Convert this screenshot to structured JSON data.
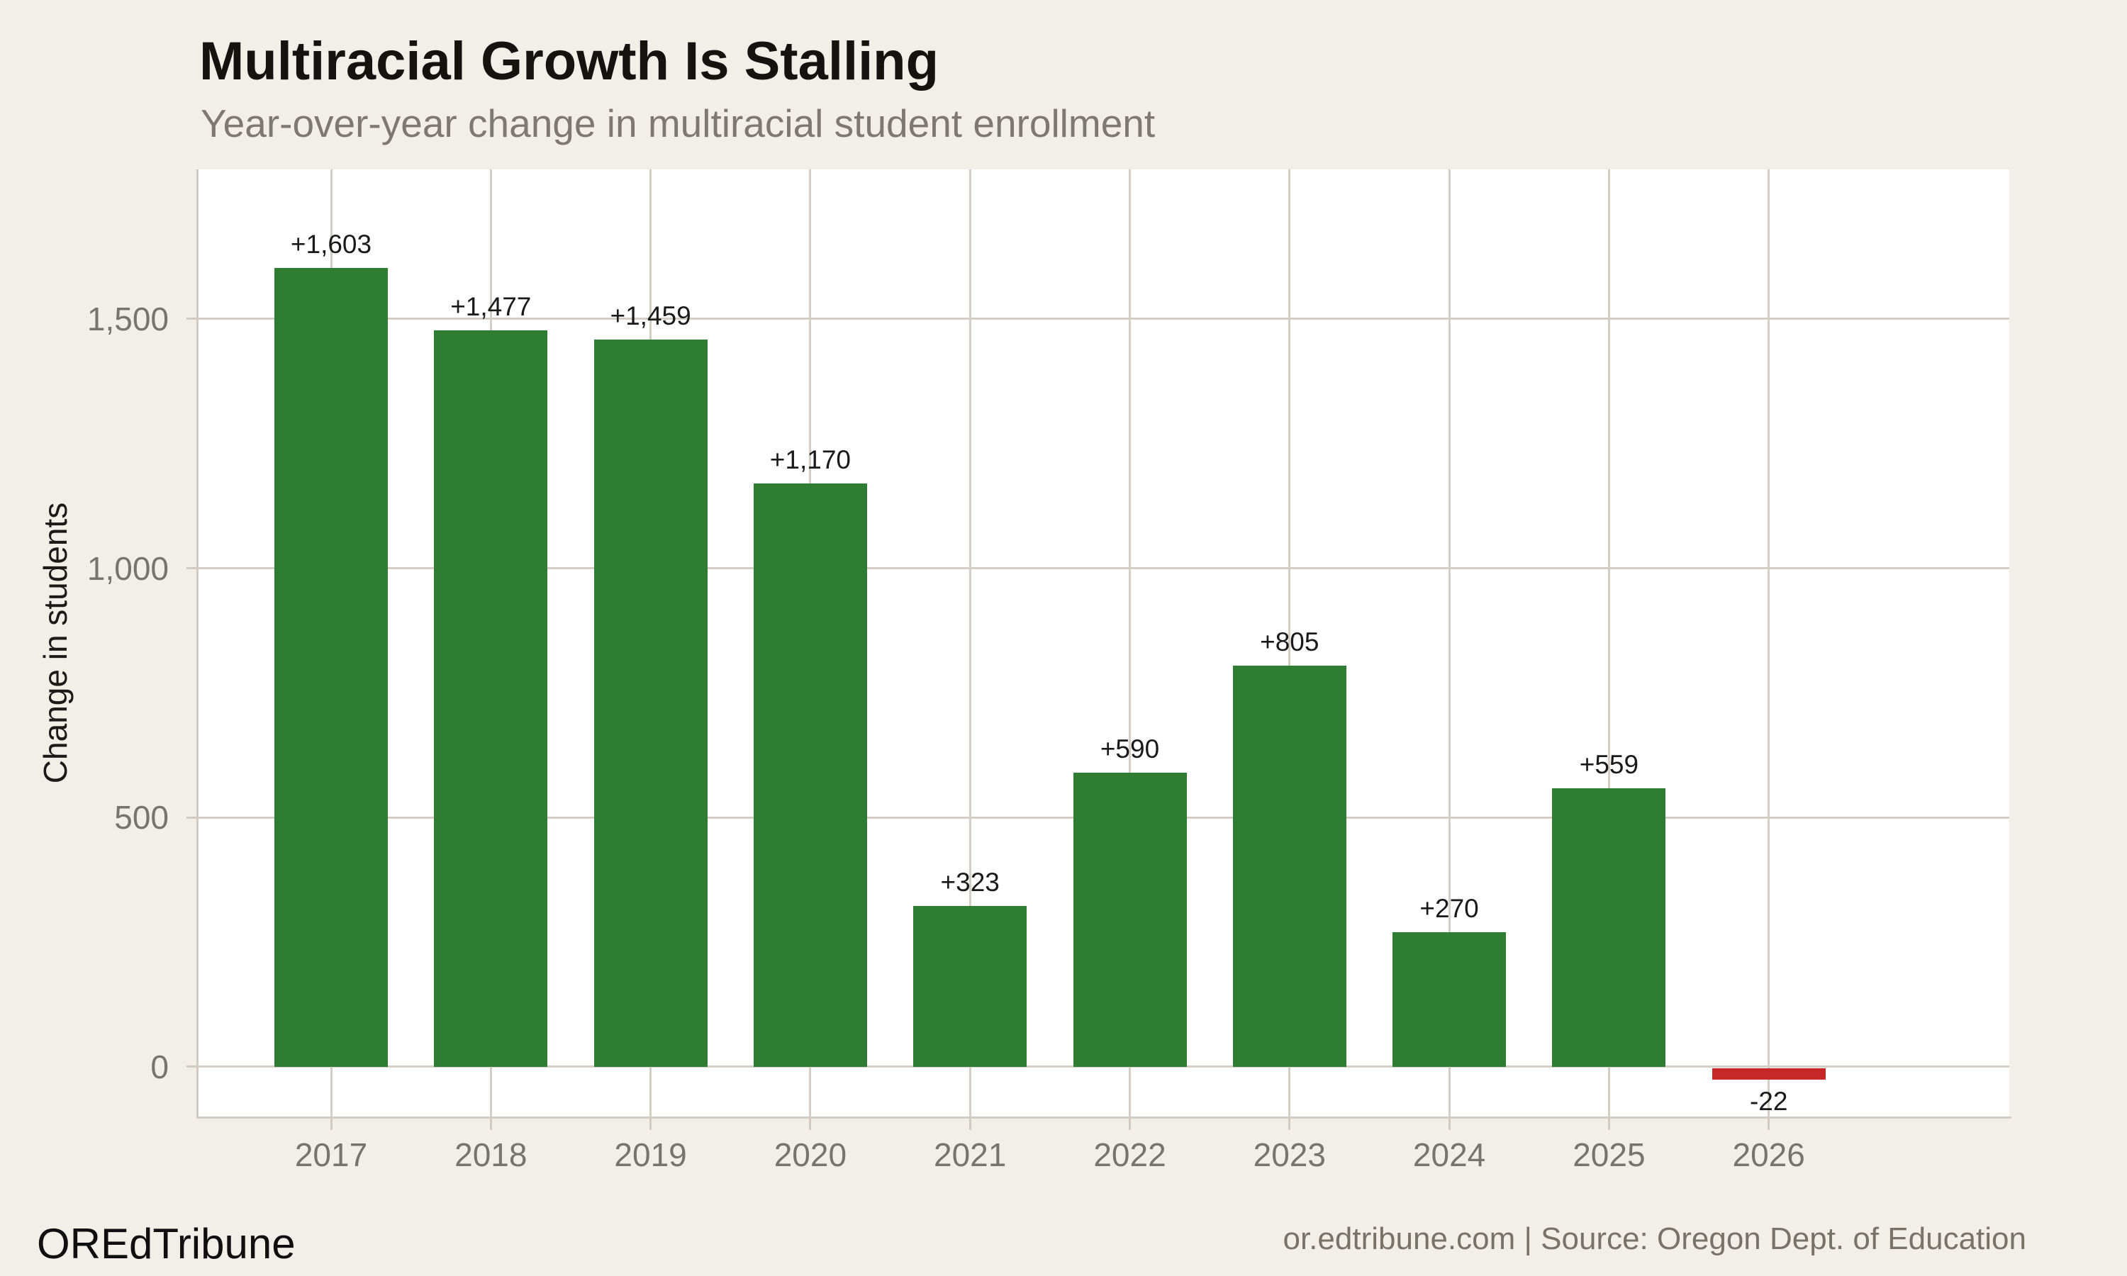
{
  "header": {
    "title": "Multiracial Growth Is Stalling",
    "subtitle": "Year-over-year change in multiracial student enrollment"
  },
  "chart_data": {
    "type": "bar",
    "title": "Multiracial Growth Is Stalling",
    "subtitle": "Year-over-year change in multiracial student enrollment",
    "xlabel": "",
    "ylabel": "Change in students",
    "categories": [
      "2017",
      "2018",
      "2019",
      "2020",
      "2021",
      "2022",
      "2023",
      "2024",
      "2025",
      "2026"
    ],
    "values": [
      1603,
      1477,
      1459,
      1170,
      323,
      590,
      805,
      270,
      559,
      -22
    ],
    "bar_labels": [
      "+1,603",
      "+1,477",
      "+1,459",
      "+1,170",
      "+323",
      "+590",
      "+805",
      "+270",
      "+559",
      "-22"
    ],
    "ylim": [
      -100,
      1800
    ],
    "yticks": {
      "values": [
        0,
        500,
        1000,
        1500
      ],
      "labels": [
        "0",
        "500",
        "1,000",
        "1,500"
      ]
    },
    "grid": true,
    "legend": "none",
    "positive_color": "#2e7d32",
    "negative_color": "#c62828"
  },
  "colors": {
    "page_background": "#f2efe9",
    "plot_background": "#ffffff",
    "gridline": "#d4cec4",
    "axis_line": "#d2cbc1",
    "positive_bar": "#2e7d32",
    "negative_bar": "#c62828",
    "title_text": "#151310",
    "subtitle_text": "#7d7872",
    "tick_label_text": "#77736d"
  },
  "footer": {
    "brand": "OREdTribune",
    "attribution": "or.edtribune.com | Source: Oregon Dept. of Education"
  }
}
